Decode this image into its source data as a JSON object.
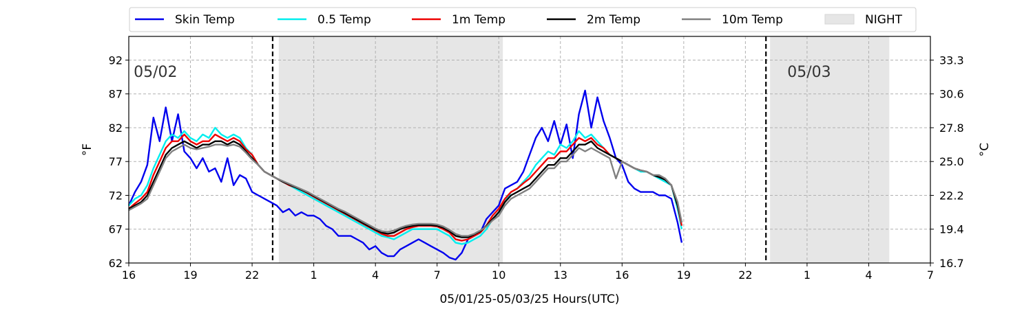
{
  "chart_data": {
    "type": "line",
    "title": "",
    "xlabel": "05/01/25-05/03/25  Hours(UTC)",
    "ylabel": "°F",
    "ylabel_right": "°C",
    "x_unit": "hours since 16 UTC 05/01",
    "xlim": [
      0,
      39
    ],
    "ylim": [
      62,
      95.5
    ],
    "x_ticks": [
      0,
      3,
      6,
      9,
      12,
      15,
      18,
      21,
      24,
      27,
      30,
      33,
      36,
      39
    ],
    "x_tick_labels": [
      "16",
      "19",
      "22",
      "1",
      "4",
      "7",
      "10",
      "13",
      "16",
      "19",
      "22",
      "1",
      "4",
      "7"
    ],
    "y_ticks": [
      62,
      67,
      72,
      77,
      82,
      87,
      92
    ],
    "y_tick_labels": [
      "62",
      "67",
      "72",
      "77",
      "82",
      "87",
      "92"
    ],
    "y2_ticks": [
      62,
      67,
      72,
      77,
      82,
      87,
      92
    ],
    "y2_tick_labels": [
      "16.7",
      "19.4",
      "22.2",
      "25.0",
      "27.8",
      "30.6",
      "33.3"
    ],
    "grid": true,
    "legend_position": "top",
    "night_periods": [
      [
        7.3,
        18.2
      ],
      [
        31.2,
        37.0
      ]
    ],
    "day_dividers": [
      7.0,
      31.0
    ],
    "date_labels": [
      {
        "text": "05/02",
        "x": 1.3,
        "y": 90.3
      },
      {
        "text": "05/03",
        "x": 33.1,
        "y": 90.3
      }
    ],
    "legend": [
      "Skin Temp",
      "0.5 Temp",
      "1m Temp",
      "2m Temp",
      "10m Temp",
      "NIGHT"
    ],
    "series": [
      {
        "name": "Skin Temp",
        "color": "#0000ee",
        "x": [
          0,
          0.3,
          0.6,
          0.9,
          1.2,
          1.5,
          1.8,
          2.1,
          2.4,
          2.7,
          3.0,
          3.3,
          3.6,
          3.9,
          4.2,
          4.5,
          4.8,
          5.1,
          5.4,
          5.7,
          6.0,
          6.3,
          6.6,
          6.9,
          7.2,
          7.5,
          7.8,
          8.1,
          8.4,
          8.7,
          9.0,
          9.3,
          9.6,
          9.9,
          10.2,
          10.5,
          10.8,
          11.1,
          11.4,
          11.7,
          12.0,
          12.3,
          12.6,
          12.9,
          13.2,
          13.5,
          13.8,
          14.1,
          14.4,
          14.7,
          15.0,
          15.3,
          15.6,
          15.9,
          16.2,
          16.5,
          16.8,
          17.1,
          17.4,
          17.7,
          18.0,
          18.3,
          18.6,
          18.9,
          19.2,
          19.5,
          19.8,
          20.1,
          20.4,
          20.7,
          21.0,
          21.3,
          21.6,
          21.9,
          22.2,
          22.5,
          22.8,
          23.1,
          23.4,
          23.7,
          24.0,
          24.3,
          24.6,
          24.9,
          25.2,
          25.5,
          25.8,
          26.1,
          26.4,
          26.7,
          26.9
        ],
        "values": [
          70.5,
          72.5,
          74.0,
          76.5,
          83.5,
          80.0,
          85.0,
          80.0,
          84.0,
          78.5,
          77.5,
          76.0,
          77.5,
          75.5,
          76.0,
          74.0,
          77.5,
          73.5,
          75.0,
          74.5,
          72.5,
          72.0,
          71.5,
          71.0,
          70.5,
          69.5,
          70.0,
          69.0,
          69.5,
          69.0,
          69.0,
          68.5,
          67.5,
          67.0,
          66.0,
          66.0,
          66.0,
          65.5,
          65.0,
          64.0,
          64.5,
          63.5,
          63.0,
          63.0,
          64.0,
          64.5,
          65.0,
          65.5,
          65.0,
          64.5,
          64.0,
          63.5,
          62.8,
          62.5,
          63.5,
          65.5,
          66.0,
          66.5,
          68.5,
          69.5,
          70.5,
          73.0,
          73.5,
          74.0,
          75.5,
          78.0,
          80.5,
          82.0,
          80.0,
          83.0,
          79.5,
          82.5,
          77.5,
          84.0,
          87.5,
          82.0,
          86.5,
          83.0,
          80.5,
          77.5,
          76.5,
          74.0,
          73.0,
          72.5,
          72.5,
          72.5,
          72.0,
          72.0,
          71.5,
          68.0,
          65.0
        ]
      },
      {
        "name": "0.5 Temp",
        "color": "#00eeee",
        "x": [
          0,
          0.3,
          0.6,
          0.9,
          1.2,
          1.5,
          1.8,
          2.1,
          2.4,
          2.7,
          3.0,
          3.3,
          3.6,
          3.9,
          4.2,
          4.5,
          4.8,
          5.1,
          5.4,
          5.7,
          6.0,
          6.3,
          6.6,
          6.9,
          7.2,
          7.5,
          7.8,
          8.1,
          8.4,
          8.7,
          9.0,
          9.3,
          9.6,
          9.9,
          10.2,
          10.5,
          10.8,
          11.1,
          11.4,
          11.7,
          12.0,
          12.3,
          12.6,
          12.9,
          13.2,
          13.5,
          13.8,
          14.1,
          14.4,
          14.7,
          15.0,
          15.3,
          15.6,
          15.9,
          16.2,
          16.5,
          16.8,
          17.1,
          17.4,
          17.7,
          18.0,
          18.3,
          18.6,
          18.9,
          19.2,
          19.5,
          19.8,
          20.1,
          20.4,
          20.7,
          21.0,
          21.3,
          21.6,
          21.9,
          22.2,
          22.5,
          22.8,
          23.1,
          23.4,
          23.7,
          24.0,
          24.3,
          24.6,
          24.9,
          25.2,
          25.5,
          25.8,
          26.1,
          26.4,
          26.7,
          26.9
        ],
        "values": [
          70.5,
          71.5,
          72.0,
          73.5,
          76.0,
          78.0,
          80.0,
          81.0,
          80.5,
          81.5,
          80.5,
          80.0,
          81.0,
          80.5,
          82.0,
          81.0,
          80.5,
          81.0,
          80.5,
          79.0,
          78.0,
          76.5,
          75.5,
          75.0,
          74.5,
          74.0,
          73.5,
          73.0,
          72.5,
          72.0,
          71.5,
          71.0,
          70.5,
          70.0,
          69.5,
          69.0,
          68.5,
          68.0,
          67.5,
          67.0,
          66.5,
          66.0,
          65.8,
          65.5,
          66.0,
          66.5,
          67.0,
          67.0,
          67.0,
          67.0,
          67.0,
          66.5,
          66.0,
          65.0,
          64.8,
          65.0,
          65.5,
          66.0,
          67.0,
          68.5,
          69.5,
          71.0,
          72.5,
          73.0,
          74.0,
          75.0,
          76.5,
          77.5,
          78.5,
          78.0,
          79.5,
          79.0,
          80.0,
          81.5,
          80.5,
          81.0,
          80.0,
          79.0,
          78.0,
          77.5,
          77.0,
          76.5,
          76.0,
          75.5,
          75.5,
          75.0,
          74.5,
          74.0,
          73.5,
          70.0,
          67.0
        ]
      },
      {
        "name": "1m Temp",
        "color": "#ee0000",
        "x": [
          0,
          0.3,
          0.6,
          0.9,
          1.2,
          1.5,
          1.8,
          2.1,
          2.4,
          2.7,
          3.0,
          3.3,
          3.6,
          3.9,
          4.2,
          4.5,
          4.8,
          5.1,
          5.4,
          5.7,
          6.0,
          6.3,
          6.6,
          6.9,
          7.2,
          7.5,
          7.8,
          8.1,
          8.4,
          8.7,
          9.0,
          9.3,
          9.6,
          9.9,
          10.2,
          10.5,
          10.8,
          11.1,
          11.4,
          11.7,
          12.0,
          12.3,
          12.6,
          12.9,
          13.2,
          13.5,
          13.8,
          14.1,
          14.4,
          14.7,
          15.0,
          15.3,
          15.6,
          15.9,
          16.2,
          16.5,
          16.8,
          17.1,
          17.4,
          17.7,
          18.0,
          18.3,
          18.6,
          18.9,
          19.2,
          19.5,
          19.8,
          20.1,
          20.4,
          20.7,
          21.0,
          21.3,
          21.6,
          21.9,
          22.2,
          22.5,
          22.8,
          23.1,
          23.4,
          23.7,
          24.0,
          24.3,
          24.6,
          24.9,
          25.2,
          25.5,
          25.8,
          26.1,
          26.4,
          26.7,
          26.9
        ],
        "values": [
          70.0,
          70.8,
          71.5,
          72.5,
          75.0,
          77.0,
          79.0,
          80.0,
          80.0,
          81.0,
          80.0,
          79.5,
          80.0,
          80.0,
          81.0,
          80.5,
          80.0,
          80.5,
          80.0,
          78.8,
          78.0,
          76.5,
          75.5,
          75.0,
          74.5,
          74.0,
          73.5,
          73.2,
          72.8,
          72.3,
          71.8,
          71.3,
          70.8,
          70.3,
          69.8,
          69.3,
          68.8,
          68.3,
          67.8,
          67.3,
          66.8,
          66.3,
          66.0,
          66.0,
          66.5,
          67.0,
          67.3,
          67.5,
          67.5,
          67.5,
          67.4,
          67.0,
          66.5,
          65.5,
          65.3,
          65.5,
          66.0,
          66.5,
          67.5,
          69.0,
          70.0,
          71.5,
          72.5,
          73.0,
          73.8,
          74.5,
          75.5,
          76.5,
          77.5,
          77.5,
          78.5,
          78.5,
          79.5,
          80.5,
          80.0,
          80.5,
          79.5,
          79.0,
          78.0,
          77.5,
          77.0,
          76.5,
          76.0,
          75.7,
          75.5,
          75.0,
          74.7,
          74.3,
          73.5,
          70.5,
          67.5
        ]
      },
      {
        "name": "2m Temp",
        "color": "#000000",
        "x": [
          0,
          0.3,
          0.6,
          0.9,
          1.2,
          1.5,
          1.8,
          2.1,
          2.4,
          2.7,
          3.0,
          3.3,
          3.6,
          3.9,
          4.2,
          4.5,
          4.8,
          5.1,
          5.4,
          5.7,
          6.0,
          6.3,
          6.6,
          6.9,
          7.2,
          7.5,
          7.8,
          8.1,
          8.4,
          8.7,
          9.0,
          9.3,
          9.6,
          9.9,
          10.2,
          10.5,
          10.8,
          11.1,
          11.4,
          11.7,
          12.0,
          12.3,
          12.6,
          12.9,
          13.2,
          13.5,
          13.8,
          14.1,
          14.4,
          14.7,
          15.0,
          15.3,
          15.6,
          15.9,
          16.2,
          16.5,
          16.8,
          17.1,
          17.4,
          17.7,
          18.0,
          18.3,
          18.6,
          18.9,
          19.2,
          19.5,
          19.8,
          20.1,
          20.4,
          20.7,
          21.0,
          21.3,
          21.6,
          21.9,
          22.2,
          22.5,
          22.8,
          23.1,
          23.4,
          23.7,
          24.0,
          24.3,
          24.6,
          24.9,
          25.2,
          25.5,
          25.8,
          26.1,
          26.4,
          26.7,
          26.9
        ],
        "values": [
          70.0,
          70.5,
          71.0,
          72.0,
          74.0,
          76.0,
          78.0,
          79.0,
          79.5,
          80.0,
          79.5,
          79.0,
          79.5,
          79.5,
          80.0,
          80.0,
          79.5,
          80.0,
          79.5,
          78.5,
          77.5,
          76.5,
          75.5,
          75.0,
          74.5,
          74.0,
          73.6,
          73.2,
          72.8,
          72.4,
          71.9,
          71.4,
          70.9,
          70.4,
          69.9,
          69.4,
          68.9,
          68.4,
          67.9,
          67.4,
          66.9,
          66.5,
          66.3,
          66.5,
          67.0,
          67.3,
          67.5,
          67.6,
          67.6,
          67.6,
          67.5,
          67.2,
          66.7,
          66.0,
          65.8,
          65.8,
          66.2,
          66.7,
          67.5,
          68.5,
          69.5,
          71.0,
          72.0,
          72.5,
          73.0,
          73.5,
          74.5,
          75.5,
          76.5,
          76.5,
          77.5,
          77.5,
          78.5,
          79.5,
          79.5,
          80.0,
          79.0,
          78.5,
          78.0,
          77.5,
          77.0,
          76.5,
          76.0,
          75.7,
          75.5,
          75.0,
          74.7,
          74.3,
          73.5,
          70.5,
          68.0
        ]
      },
      {
        "name": "10m Temp",
        "color": "#808080",
        "x": [
          0,
          0.3,
          0.6,
          0.9,
          1.2,
          1.5,
          1.8,
          2.1,
          2.4,
          2.7,
          3.0,
          3.3,
          3.6,
          3.9,
          4.2,
          4.5,
          4.8,
          5.1,
          5.4,
          5.7,
          6.0,
          6.3,
          6.6,
          6.9,
          7.2,
          7.5,
          7.8,
          8.1,
          8.4,
          8.7,
          9.0,
          9.3,
          9.6,
          9.9,
          10.2,
          10.5,
          10.8,
          11.1,
          11.4,
          11.7,
          12.0,
          12.3,
          12.6,
          12.9,
          13.2,
          13.5,
          13.8,
          14.1,
          14.4,
          14.7,
          15.0,
          15.3,
          15.6,
          15.9,
          16.2,
          16.5,
          16.8,
          17.1,
          17.4,
          17.7,
          18.0,
          18.3,
          18.6,
          18.9,
          19.2,
          19.5,
          19.8,
          20.1,
          20.4,
          20.7,
          21.0,
          21.3,
          21.6,
          21.9,
          22.2,
          22.5,
          22.8,
          23.1,
          23.4,
          23.7,
          24.0,
          24.3,
          24.6,
          24.9,
          25.2,
          25.5,
          25.8,
          26.1,
          26.4,
          26.7,
          26.9
        ],
        "values": [
          69.8,
          70.3,
          70.8,
          71.5,
          73.5,
          75.5,
          77.5,
          78.5,
          79.0,
          79.5,
          79.0,
          78.8,
          79.0,
          79.2,
          79.5,
          79.5,
          79.3,
          79.5,
          79.2,
          78.3,
          77.3,
          76.5,
          75.5,
          75.0,
          74.5,
          74.1,
          73.7,
          73.3,
          72.9,
          72.5,
          72.0,
          71.5,
          71.0,
          70.5,
          70.0,
          69.6,
          69.1,
          68.6,
          68.1,
          67.6,
          67.1,
          66.7,
          66.6,
          66.8,
          67.2,
          67.5,
          67.7,
          67.8,
          67.8,
          67.8,
          67.7,
          67.4,
          66.9,
          66.3,
          66.0,
          66.0,
          66.3,
          66.8,
          67.4,
          68.3,
          69.0,
          70.5,
          71.5,
          72.0,
          72.5,
          73.0,
          74.0,
          75.0,
          76.0,
          76.0,
          77.0,
          77.0,
          78.0,
          79.0,
          78.5,
          79.0,
          78.5,
          78.0,
          77.5,
          74.5,
          77.0,
          76.5,
          76.0,
          75.7,
          75.5,
          75.0,
          75.0,
          74.5,
          73.5,
          71.0,
          68.0
        ]
      }
    ]
  }
}
